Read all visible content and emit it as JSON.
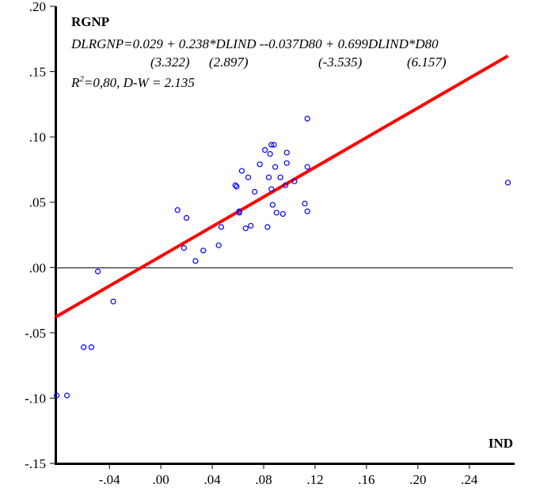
{
  "chart_data": {
    "type": "scatter",
    "title": "",
    "xlabel": "IND",
    "ylabel": "RGNP",
    "xlim": [
      -0.082,
      0.274
    ],
    "ylim": [
      -0.15,
      0.2
    ],
    "x_ticks": [
      -0.04,
      0.0,
      0.04,
      0.08,
      0.12,
      0.16,
      0.2,
      0.24
    ],
    "x_tick_labels": [
      "-.04",
      ".00",
      ".04",
      ".08",
      ".12",
      ".16",
      ".20",
      ".24"
    ],
    "y_ticks": [
      0.2,
      0.15,
      0.1,
      0.05,
      0.0,
      -0.05,
      -0.1,
      -0.15
    ],
    "y_tick_labels": [
      ".20",
      ".15",
      ".10",
      ".05",
      ".00",
      "-.05",
      "-.10",
      "-.15"
    ],
    "grid": false,
    "zero_line": true,
    "annotation": {
      "equation": "DLRGNP=0.029 + 0.238*DLIND --0.037D80 + 0.699DLIND*D80",
      "t_stats": [
        "(3.322)",
        "(2.897)",
        "(-3.535)",
        "(6.157)"
      ],
      "r2_prefix": "R",
      "r2_sup": "2",
      "r2_rest": "=0,80, D-W = 2.135"
    },
    "points": [
      {
        "x": -0.081,
        "y": -0.098
      },
      {
        "x": -0.073,
        "y": -0.098
      },
      {
        "x": -0.06,
        "y": -0.061
      },
      {
        "x": -0.054,
        "y": -0.061
      },
      {
        "x": -0.049,
        "y": -0.003
      },
      {
        "x": -0.037,
        "y": -0.026
      },
      {
        "x": 0.013,
        "y": 0.044
      },
      {
        "x": 0.018,
        "y": 0.015
      },
      {
        "x": 0.02,
        "y": 0.038
      },
      {
        "x": 0.027,
        "y": 0.005
      },
      {
        "x": 0.033,
        "y": 0.013
      },
      {
        "x": 0.045,
        "y": 0.017
      },
      {
        "x": 0.047,
        "y": 0.031
      },
      {
        "x": 0.058,
        "y": 0.063
      },
      {
        "x": 0.059,
        "y": 0.062
      },
      {
        "x": 0.061,
        "y": 0.043
      },
      {
        "x": 0.061,
        "y": 0.042
      },
      {
        "x": 0.063,
        "y": 0.074
      },
      {
        "x": 0.066,
        "y": 0.03
      },
      {
        "x": 0.068,
        "y": 0.069
      },
      {
        "x": 0.07,
        "y": 0.032
      },
      {
        "x": 0.073,
        "y": 0.058
      },
      {
        "x": 0.077,
        "y": 0.079
      },
      {
        "x": 0.081,
        "y": 0.09
      },
      {
        "x": 0.083,
        "y": 0.031
      },
      {
        "x": 0.084,
        "y": 0.069
      },
      {
        "x": 0.085,
        "y": 0.087
      },
      {
        "x": 0.086,
        "y": 0.094
      },
      {
        "x": 0.086,
        "y": 0.06
      },
      {
        "x": 0.087,
        "y": 0.048
      },
      {
        "x": 0.088,
        "y": 0.094
      },
      {
        "x": 0.089,
        "y": 0.077
      },
      {
        "x": 0.09,
        "y": 0.042
      },
      {
        "x": 0.093,
        "y": 0.069
      },
      {
        "x": 0.095,
        "y": 0.041
      },
      {
        "x": 0.097,
        "y": 0.063
      },
      {
        "x": 0.098,
        "y": 0.08
      },
      {
        "x": 0.098,
        "y": 0.088
      },
      {
        "x": 0.104,
        "y": 0.066
      },
      {
        "x": 0.112,
        "y": 0.049
      },
      {
        "x": 0.114,
        "y": 0.077
      },
      {
        "x": 0.114,
        "y": 0.114
      },
      {
        "x": 0.114,
        "y": 0.043
      },
      {
        "x": 0.27,
        "y": 0.065
      }
    ],
    "fit_line": {
      "x": [
        -0.082,
        0.27
      ],
      "y": [
        -0.038,
        0.162
      ]
    },
    "colors": {
      "points": "#0000ff",
      "fit_line": "#ff0000",
      "axis": "#000000"
    }
  }
}
